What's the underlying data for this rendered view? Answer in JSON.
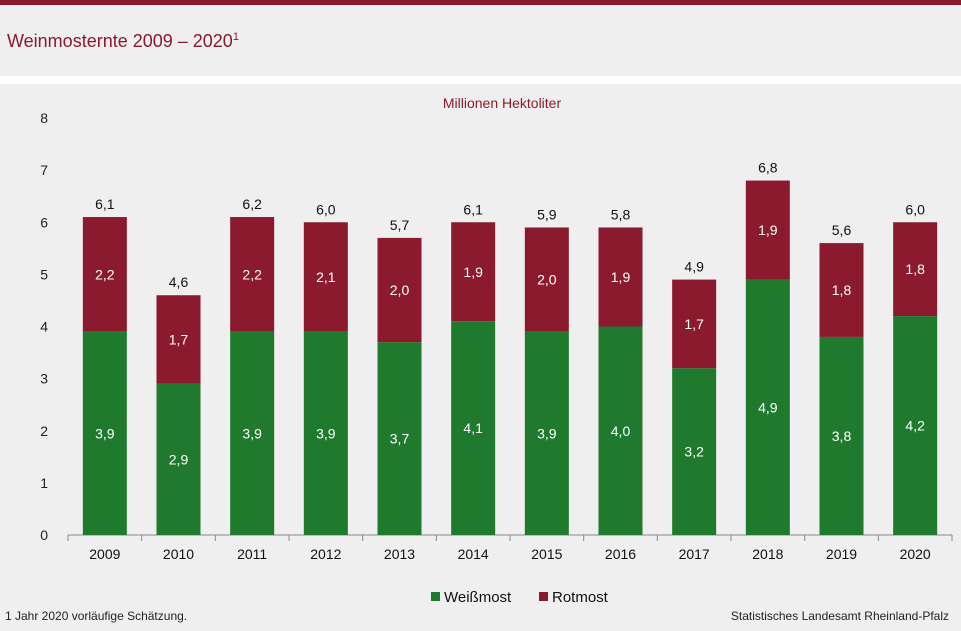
{
  "header": {
    "title": "Weinmosternte 2009 – 2020",
    "title_sup": "1"
  },
  "colors": {
    "accent": "#8b1a2f",
    "weissmost": "#1f7a2e",
    "rotmost": "#8b1a2f",
    "background": "#efefef"
  },
  "chart_data": {
    "type": "bar",
    "stacked": true,
    "unit_label": "Millionen Hektoliter",
    "categories": [
      "2009",
      "2010",
      "2011",
      "2012",
      "2013",
      "2014",
      "2015",
      "2016",
      "2017",
      "2018",
      "2019",
      "2020"
    ],
    "series": [
      {
        "name": "Weißmost",
        "values": [
          3.9,
          2.9,
          3.9,
          3.9,
          3.7,
          4.1,
          3.9,
          4.0,
          3.2,
          4.9,
          3.8,
          4.2
        ]
      },
      {
        "name": "Rotmost",
        "values": [
          2.2,
          1.7,
          2.2,
          2.1,
          2.0,
          1.9,
          2.0,
          1.9,
          1.7,
          1.9,
          1.8,
          1.8
        ]
      }
    ],
    "totals": [
      6.1,
      4.6,
      6.2,
      6.0,
      5.7,
      6.1,
      5.9,
      5.8,
      4.9,
      6.8,
      5.6,
      6.0
    ],
    "ylim": [
      0,
      8
    ],
    "yticks": [
      "0",
      "1",
      "2",
      "3",
      "4",
      "5",
      "6",
      "7",
      "8"
    ],
    "grid": false,
    "legend_position": "bottom-center"
  },
  "footer": {
    "footnote": "1 Jahr 2020 vorläufige  Schätzung.",
    "source": "Statistisches Landesamt Rheinland-Pfalz"
  }
}
